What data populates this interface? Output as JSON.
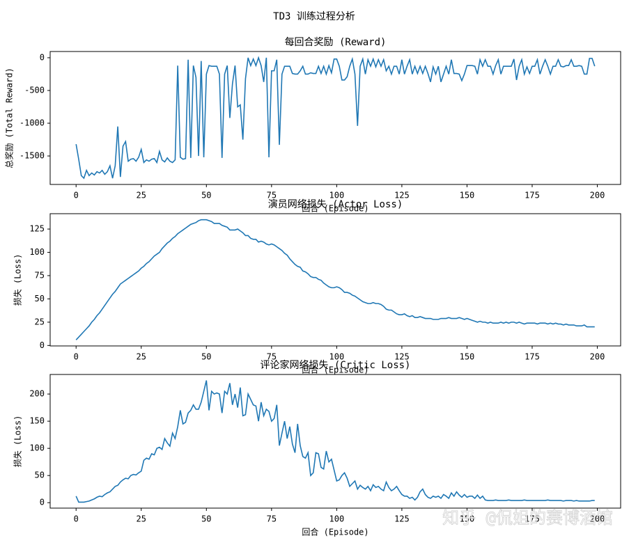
{
  "title": "TD3 训练过程分析",
  "watermark": "知乎 @侃姐的赛博酒馆",
  "chart_data": [
    {
      "type": "line",
      "title": "每回合奖励 (Reward)",
      "x_label": "回合 (Episode)",
      "y_label": "总奖励 (Total Reward)",
      "color": "#1f77b4",
      "xlim": [
        -9.95,
        208.95
      ],
      "xticks": [
        0,
        25,
        50,
        75,
        100,
        125,
        150,
        175,
        200
      ],
      "ylim": [
        -1935,
        95
      ],
      "yticks": [
        -1500,
        -1000,
        -500,
        0
      ],
      "x": [
        0,
        1,
        2,
        3,
        4,
        5,
        6,
        7,
        8,
        9,
        10,
        11,
        12,
        13,
        14,
        15,
        16,
        17,
        18,
        19,
        20,
        21,
        22,
        23,
        24,
        25,
        26,
        27,
        28,
        29,
        30,
        31,
        32,
        33,
        34,
        35,
        36,
        37,
        38,
        39,
        40,
        41,
        42,
        43,
        44,
        45,
        46,
        47,
        48,
        49,
        50,
        51,
        52,
        53,
        54,
        55,
        56,
        57,
        58,
        59,
        60,
        61,
        62,
        63,
        64,
        65,
        66,
        67,
        68,
        69,
        70,
        71,
        72,
        73,
        74,
        75,
        76,
        77,
        78,
        79,
        80,
        81,
        82,
        83,
        84,
        85,
        86,
        87,
        88,
        89,
        90,
        91,
        92,
        93,
        94,
        95,
        96,
        97,
        98,
        99,
        100,
        101,
        102,
        103,
        104,
        105,
        106,
        107,
        108,
        109,
        110,
        111,
        112,
        113,
        114,
        115,
        116,
        117,
        118,
        119,
        120,
        121,
        122,
        123,
        124,
        125,
        126,
        127,
        128,
        129,
        130,
        131,
        132,
        133,
        134,
        135,
        136,
        137,
        138,
        139,
        140,
        141,
        142,
        143,
        144,
        145,
        146,
        147,
        148,
        149,
        150,
        151,
        152,
        153,
        154,
        155,
        156,
        157,
        158,
        159,
        160,
        161,
        162,
        163,
        164,
        165,
        166,
        167,
        168,
        169,
        170,
        171,
        172,
        173,
        174,
        175,
        176,
        177,
        178,
        179,
        180,
        181,
        182,
        183,
        184,
        185,
        186,
        187,
        188,
        189,
        190,
        191,
        192,
        193,
        194,
        195,
        196,
        197,
        198,
        199
      ],
      "values": [
        -1320,
        -1550,
        -1800,
        -1840,
        -1720,
        -1800,
        -1760,
        -1790,
        -1740,
        -1760,
        -1720,
        -1780,
        -1740,
        -1650,
        -1840,
        -1650,
        -1050,
        -1820,
        -1350,
        -1280,
        -1580,
        -1550,
        -1540,
        -1580,
        -1520,
        -1400,
        -1600,
        -1560,
        -1580,
        -1550,
        -1540,
        -1600,
        -1430,
        -1560,
        -1590,
        -1530,
        -1580,
        -1600,
        -1560,
        -120,
        -1520,
        -1550,
        -1540,
        -30,
        -1530,
        -120,
        -300,
        -1500,
        -50,
        -1520,
        -250,
        -120,
        -130,
        -130,
        -130,
        -250,
        -1530,
        -250,
        -120,
        -920,
        -400,
        -120,
        -750,
        -720,
        -1250,
        -320,
        0,
        -120,
        -20,
        -120,
        0,
        -120,
        -370,
        0,
        -1520,
        -200,
        -200,
        -30,
        -1330,
        -250,
        -130,
        -130,
        -130,
        -240,
        -250,
        -250,
        -200,
        -130,
        -250,
        -250,
        -230,
        -240,
        -240,
        -130,
        -240,
        -130,
        -250,
        -120,
        -230,
        -20,
        -20,
        -130,
        -340,
        -340,
        -290,
        -130,
        -20,
        -250,
        -1040,
        -130,
        -20,
        -250,
        -30,
        -130,
        -20,
        -140,
        -30,
        -130,
        -30,
        -200,
        -130,
        -250,
        -130,
        -130,
        -250,
        -30,
        -250,
        -130,
        -30,
        -250,
        -130,
        -240,
        -130,
        -240,
        -130,
        -240,
        -370,
        -140,
        -250,
        -130,
        -370,
        -250,
        -130,
        -250,
        -30,
        -240,
        -240,
        -250,
        -350,
        -250,
        -120,
        -120,
        -120,
        -130,
        -250,
        -30,
        -130,
        -30,
        -130,
        -130,
        -250,
        -120,
        -30,
        -250,
        -130,
        -130,
        -130,
        -130,
        -20,
        -340,
        -130,
        -30,
        -250,
        -140,
        -240,
        -130,
        -130,
        -30,
        -250,
        -130,
        -30,
        -130,
        -250,
        -130,
        -130,
        -30,
        -130,
        -140,
        -120,
        -120,
        -30,
        -130,
        -130,
        -120,
        -130,
        -250,
        -250,
        -10,
        -10,
        -130
      ]
    },
    {
      "type": "line",
      "title": "演员网络损失 (Actor Loss)",
      "x_label": "回合 (Episode)",
      "y_label": "损失 (Loss)",
      "color": "#1f77b4",
      "xlim": [
        -9.95,
        208.95
      ],
      "xticks": [
        0,
        25,
        50,
        75,
        100,
        125,
        150,
        175,
        200
      ],
      "ylim": [
        -0.5,
        141.5
      ],
      "yticks": [
        0,
        25,
        50,
        75,
        100,
        125
      ],
      "x": [
        0,
        1,
        2,
        3,
        4,
        5,
        6,
        7,
        8,
        9,
        10,
        11,
        12,
        13,
        14,
        15,
        16,
        17,
        18,
        19,
        20,
        21,
        22,
        23,
        24,
        25,
        26,
        27,
        28,
        29,
        30,
        31,
        32,
        33,
        34,
        35,
        36,
        37,
        38,
        39,
        40,
        41,
        42,
        43,
        44,
        45,
        46,
        47,
        48,
        49,
        50,
        51,
        52,
        53,
        54,
        55,
        56,
        57,
        58,
        59,
        60,
        61,
        62,
        63,
        64,
        65,
        66,
        67,
        68,
        69,
        70,
        71,
        72,
        73,
        74,
        75,
        76,
        77,
        78,
        79,
        80,
        81,
        82,
        83,
        84,
        85,
        86,
        87,
        88,
        89,
        90,
        91,
        92,
        93,
        94,
        95,
        96,
        97,
        98,
        99,
        100,
        101,
        102,
        103,
        104,
        105,
        106,
        107,
        108,
        109,
        110,
        111,
        112,
        113,
        114,
        115,
        116,
        117,
        118,
        119,
        120,
        121,
        122,
        123,
        124,
        125,
        126,
        127,
        128,
        129,
        130,
        131,
        132,
        133,
        134,
        135,
        136,
        137,
        138,
        139,
        140,
        141,
        142,
        143,
        144,
        145,
        146,
        147,
        148,
        149,
        150,
        151,
        152,
        153,
        154,
        155,
        156,
        157,
        158,
        159,
        160,
        161,
        162,
        163,
        164,
        165,
        166,
        167,
        168,
        169,
        170,
        171,
        172,
        173,
        174,
        175,
        176,
        177,
        178,
        179,
        180,
        181,
        182,
        183,
        184,
        185,
        186,
        187,
        188,
        189,
        190,
        191,
        192,
        193,
        194,
        195,
        196,
        197,
        198,
        199
      ],
      "values": [
        6,
        9,
        12,
        15,
        18,
        21,
        25,
        28,
        32,
        35,
        39,
        43,
        47,
        51,
        55,
        58,
        62,
        66,
        68,
        70,
        72,
        74,
        76,
        78,
        80,
        83,
        85,
        88,
        90,
        93,
        96,
        98,
        100,
        104,
        107,
        110,
        112,
        115,
        117,
        120,
        122,
        124,
        126,
        128,
        130,
        131,
        132,
        134,
        135,
        135,
        135,
        134,
        133,
        131,
        131,
        131,
        129,
        128,
        127,
        124,
        124,
        124,
        125,
        123,
        121,
        118,
        118,
        115,
        114,
        114,
        111,
        112,
        111,
        109,
        108,
        109,
        108,
        106,
        104,
        102,
        99,
        97,
        93,
        90,
        87,
        85,
        84,
        80,
        79,
        77,
        74,
        73,
        73,
        71,
        70,
        67,
        65,
        63,
        62,
        62,
        63,
        62,
        60,
        57,
        57,
        56,
        54,
        53,
        51,
        49,
        47,
        46,
        45,
        45,
        46,
        45,
        45,
        44,
        42,
        39,
        38,
        38,
        36,
        34,
        33,
        33,
        34,
        32,
        31,
        32,
        30,
        30,
        31,
        30,
        29,
        29,
        29,
        28,
        28,
        28,
        29,
        29,
        29,
        30,
        29,
        29,
        29,
        30,
        29,
        28,
        29,
        28,
        27,
        26,
        25,
        26,
        25,
        25,
        24,
        25,
        24,
        24,
        24,
        25,
        24,
        25,
        24,
        25,
        25,
        24,
        25,
        24,
        23,
        24,
        24,
        24,
        24,
        23,
        24,
        24,
        24,
        23,
        24,
        23,
        24,
        23,
        23,
        22,
        23,
        22,
        22,
        22,
        21,
        21,
        21,
        22,
        20,
        20,
        20,
        20
      ]
    },
    {
      "type": "line",
      "title": "评论家网络损失 (Critic Loss)",
      "x_label": "回合 (Episode)",
      "y_label": "损失 (Loss)",
      "color": "#1f77b4",
      "xlim": [
        -9.95,
        208.95
      ],
      "xticks": [
        0,
        25,
        50,
        75,
        100,
        125,
        150,
        175,
        200
      ],
      "ylim": [
        -10,
        236
      ],
      "yticks": [
        0,
        50,
        100,
        150,
        200
      ],
      "x": [
        0,
        1,
        2,
        3,
        4,
        5,
        6,
        7,
        8,
        9,
        10,
        11,
        12,
        13,
        14,
        15,
        16,
        17,
        18,
        19,
        20,
        21,
        22,
        23,
        24,
        25,
        26,
        27,
        28,
        29,
        30,
        31,
        32,
        33,
        34,
        35,
        36,
        37,
        38,
        39,
        40,
        41,
        42,
        43,
        44,
        45,
        46,
        47,
        48,
        49,
        50,
        51,
        52,
        53,
        54,
        55,
        56,
        57,
        58,
        59,
        60,
        61,
        62,
        63,
        64,
        65,
        66,
        67,
        68,
        69,
        70,
        71,
        72,
        73,
        74,
        75,
        76,
        77,
        78,
        79,
        80,
        81,
        82,
        83,
        84,
        85,
        86,
        87,
        88,
        89,
        90,
        91,
        92,
        93,
        94,
        95,
        96,
        97,
        98,
        99,
        100,
        101,
        102,
        103,
        104,
        105,
        106,
        107,
        108,
        109,
        110,
        111,
        112,
        113,
        114,
        115,
        116,
        117,
        118,
        119,
        120,
        121,
        122,
        123,
        124,
        125,
        126,
        127,
        128,
        129,
        130,
        131,
        132,
        133,
        134,
        135,
        136,
        137,
        138,
        139,
        140,
        141,
        142,
        143,
        144,
        145,
        146,
        147,
        148,
        149,
        150,
        151,
        152,
        153,
        154,
        155,
        156,
        157,
        158,
        159,
        160,
        161,
        162,
        163,
        164,
        165,
        166,
        167,
        168,
        169,
        170,
        171,
        172,
        173,
        174,
        175,
        176,
        177,
        178,
        179,
        180,
        181,
        182,
        183,
        184,
        185,
        186,
        187,
        188,
        189,
        190,
        191,
        192,
        193,
        194,
        195,
        196,
        197,
        198,
        199
      ],
      "values": [
        12,
        1,
        1,
        1,
        2,
        3,
        5,
        7,
        10,
        12,
        11,
        15,
        18,
        20,
        25,
        30,
        32,
        38,
        42,
        45,
        44,
        50,
        52,
        51,
        55,
        58,
        78,
        82,
        80,
        90,
        88,
        100,
        102,
        98,
        118,
        110,
        104,
        128,
        118,
        140,
        170,
        145,
        148,
        165,
        170,
        180,
        172,
        172,
        185,
        205,
        225,
        170,
        205,
        200,
        202,
        200,
        165,
        205,
        200,
        220,
        180,
        200,
        175,
        212,
        160,
        162,
        200,
        190,
        180,
        178,
        150,
        185,
        160,
        172,
        168,
        150,
        155,
        180,
        105,
        128,
        150,
        118,
        140,
        108,
        92,
        145,
        105,
        85,
        82,
        92,
        50,
        55,
        92,
        90,
        65,
        62,
        95,
        75,
        80,
        60,
        40,
        42,
        50,
        55,
        45,
        30,
        35,
        40,
        25,
        32,
        28,
        25,
        30,
        22,
        33,
        28,
        30,
        25,
        22,
        38,
        28,
        22,
        25,
        30,
        22,
        15,
        12,
        12,
        8,
        10,
        5,
        10,
        20,
        25,
        15,
        10,
        8,
        12,
        10,
        12,
        8,
        15,
        12,
        8,
        18,
        12,
        20,
        14,
        10,
        15,
        10,
        12,
        12,
        8,
        14,
        8,
        12,
        5,
        4,
        4,
        4,
        5,
        4,
        4,
        4,
        4,
        5,
        4,
        4,
        4,
        4,
        4,
        5,
        4,
        4,
        4,
        4,
        4,
        4,
        4,
        4,
        5,
        4,
        4,
        4,
        4,
        4,
        3,
        4,
        4,
        4,
        3,
        4,
        3,
        3,
        3,
        3,
        3,
        4,
        4
      ]
    }
  ]
}
